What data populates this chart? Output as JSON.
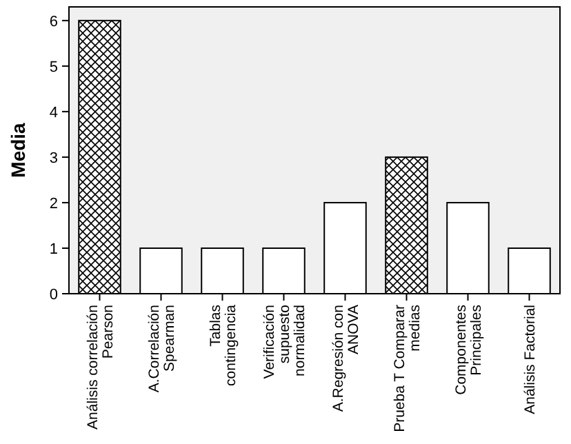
{
  "chart_data": {
    "type": "bar",
    "ylabel": "Media",
    "categories": [
      "Análisis correlación\nPearson",
      "A.Correlación\nSpearman",
      "Tablas\ncontingencia",
      "Verificación\nsupuesto\nnormalidad",
      "A.Regresión con\nANOVA",
      "Prueba T Comparar\nmedias",
      "Componentes\nPrincipales",
      "Análisis Factorial"
    ],
    "values": [
      6,
      1,
      1,
      1,
      2,
      3,
      2,
      1
    ],
    "colors": [
      "#000000",
      "#ffffff",
      "#ffffff",
      "#ffffff",
      "#ffffff",
      "#000000",
      "#ffffff",
      "#ffffff"
    ],
    "ylim": [
      0,
      6.3
    ],
    "yticks": [
      0,
      1,
      2,
      3,
      4,
      5,
      6
    ],
    "grid": false
  }
}
